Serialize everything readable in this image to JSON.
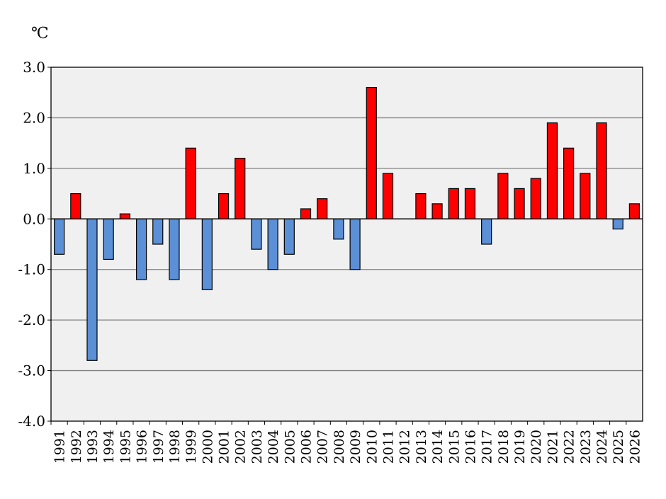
{
  "chart_data": {
    "type": "bar",
    "title": "",
    "unit_label": "℃",
    "xlabel": "",
    "ylabel": "",
    "ylim": [
      -4.0,
      3.0
    ],
    "y_ticks": [
      "3.0",
      "2.0",
      "1.0",
      "0.0",
      "-1.0",
      "-2.0",
      "-3.0",
      "-4.0"
    ],
    "grid": true,
    "legend": "none",
    "categories": [
      "1991",
      "1992",
      "1993",
      "1994",
      "1995",
      "1996",
      "1997",
      "1998",
      "1999",
      "2000",
      "2001",
      "2002",
      "2003",
      "2004",
      "2005",
      "2006",
      "2007",
      "2008",
      "2009",
      "2010",
      "2011",
      "2012",
      "2013",
      "2014",
      "2015",
      "2016",
      "2017",
      "2018",
      "2019",
      "2020",
      "2021",
      "2022",
      "2023",
      "2024",
      "2025",
      "2026"
    ],
    "values": [
      -0.7,
      0.5,
      -2.8,
      -0.8,
      0.1,
      -1.2,
      -0.5,
      -1.2,
      1.4,
      -1.4,
      0.5,
      1.2,
      -0.6,
      -1.0,
      -0.7,
      0.2,
      0.4,
      -0.4,
      -1.0,
      2.6,
      0.9,
      0.0,
      0.5,
      0.3,
      0.6,
      0.6,
      -0.5,
      0.9,
      0.6,
      0.8,
      1.9,
      1.4,
      0.9,
      1.9,
      -0.2,
      0.3
    ],
    "colors": {
      "positive": "#ff0000",
      "negative": "#5b8fd6",
      "plot_bg": "#f0f0f0",
      "gridline": "#808080"
    }
  }
}
